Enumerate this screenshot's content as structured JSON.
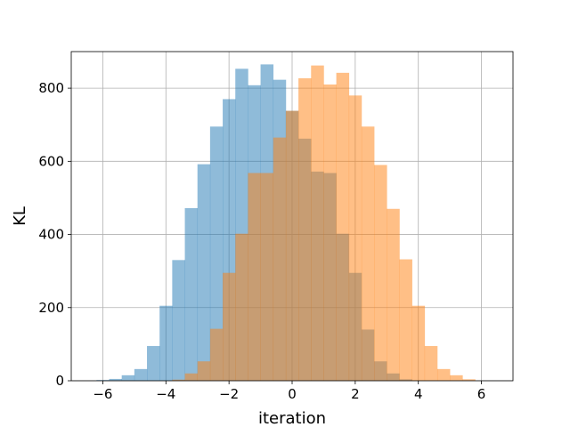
{
  "chart_data": {
    "type": "histogram",
    "title": "",
    "xlabel": "iteration",
    "ylabel": "KL",
    "xlim": [
      -7,
      7
    ],
    "ylim": [
      0,
      900
    ],
    "xticks": [
      -6,
      -4,
      -2,
      0,
      2,
      4,
      6
    ],
    "xtick_labels": [
      "−6",
      "−4",
      "−2",
      "0",
      "2",
      "4",
      "6"
    ],
    "yticks": [
      0,
      200,
      400,
      600,
      800
    ],
    "ytick_labels": [
      "0",
      "200",
      "400",
      "600",
      "800"
    ],
    "grid": true,
    "legend": "none",
    "series": [
      {
        "color": "#1f77b4",
        "opacity": 0.5,
        "bins": [
          [
            -6.2,
            -5.8,
            2
          ],
          [
            -5.8,
            -5.4,
            5
          ],
          [
            -5.4,
            -5.0,
            15
          ],
          [
            -5.0,
            -4.6,
            32
          ],
          [
            -4.6,
            -4.2,
            95
          ],
          [
            -4.2,
            -3.8,
            205
          ],
          [
            -3.8,
            -3.4,
            330
          ],
          [
            -3.4,
            -3.0,
            472
          ],
          [
            -3.0,
            -2.6,
            592
          ],
          [
            -2.6,
            -2.2,
            695
          ],
          [
            -2.2,
            -1.8,
            770
          ],
          [
            -1.8,
            -1.4,
            853
          ],
          [
            -1.4,
            -1.0,
            808
          ],
          [
            -1.0,
            -0.6,
            865
          ],
          [
            -0.6,
            -0.2,
            823
          ],
          [
            -0.2,
            0.2,
            738
          ],
          [
            0.2,
            0.6,
            662
          ],
          [
            0.6,
            1.0,
            572
          ],
          [
            1.0,
            1.4,
            568
          ],
          [
            1.4,
            1.8,
            402
          ],
          [
            1.8,
            2.2,
            295
          ],
          [
            2.2,
            2.6,
            140
          ],
          [
            2.6,
            3.0,
            53
          ],
          [
            3.0,
            3.4,
            20
          ],
          [
            3.4,
            3.8,
            4
          ]
        ]
      },
      {
        "color": "#ff7f0e",
        "opacity": 0.5,
        "bins": [
          [
            -3.8,
            -3.4,
            3
          ],
          [
            -3.4,
            -3.0,
            20
          ],
          [
            -3.0,
            -2.6,
            53
          ],
          [
            -2.6,
            -2.2,
            142
          ],
          [
            -2.2,
            -1.8,
            295
          ],
          [
            -1.8,
            -1.4,
            402
          ],
          [
            -1.4,
            -1.0,
            568
          ],
          [
            -1.0,
            -0.6,
            568
          ],
          [
            -0.6,
            -0.2,
            665
          ],
          [
            -0.2,
            0.2,
            738
          ],
          [
            0.2,
            0.6,
            827
          ],
          [
            0.6,
            1.0,
            862
          ],
          [
            1.0,
            1.4,
            810
          ],
          [
            1.4,
            1.8,
            842
          ],
          [
            1.8,
            2.2,
            780
          ],
          [
            2.2,
            2.6,
            695
          ],
          [
            2.6,
            3.0,
            590
          ],
          [
            3.0,
            3.4,
            470
          ],
          [
            3.4,
            3.8,
            332
          ],
          [
            3.8,
            4.2,
            205
          ],
          [
            4.2,
            4.6,
            95
          ],
          [
            4.6,
            5.0,
            32
          ],
          [
            5.0,
            5.4,
            15
          ],
          [
            5.4,
            5.8,
            4
          ]
        ]
      }
    ]
  }
}
